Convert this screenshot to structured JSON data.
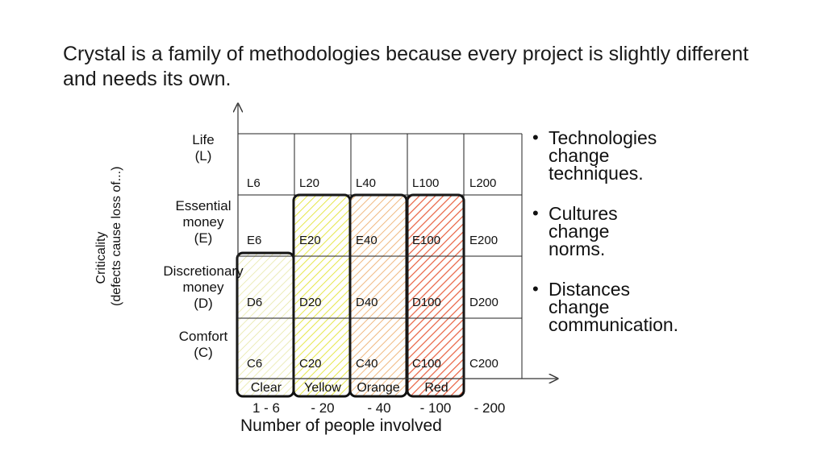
{
  "title": "Crystal is a family of methodologies because every project is slightly different and needs its own.",
  "y_axis_title": [
    "Criticality",
    "(defects cause loss of...)"
  ],
  "y_levels": [
    {
      "name": "Life",
      "code": "(L)"
    },
    {
      "name": "Essential money",
      "code": "(E)"
    },
    {
      "name": "Discretionary money",
      "code": "(D)"
    },
    {
      "name": "Comfort",
      "code": "(C)"
    }
  ],
  "cells": [
    [
      "L6",
      "L20",
      "L40",
      "L100",
      "L200"
    ],
    [
      "E6",
      "E20",
      "E40",
      "E100",
      "E200"
    ],
    [
      "D6",
      "D20",
      "D40",
      "D100",
      "D200"
    ],
    [
      "C6",
      "C20",
      "C40",
      "C100",
      "C200"
    ]
  ],
  "bands": [
    {
      "name": "Clear",
      "color": "#f2f2b0"
    },
    {
      "name": "Yellow",
      "color": "#f0f060"
    },
    {
      "name": "Orange",
      "color": "#f2b87a"
    },
    {
      "name": "Red",
      "color": "#e8573a"
    }
  ],
  "x_ticks": [
    "1 - 6",
    "- 20",
    "- 40",
    "- 100",
    "- 200"
  ],
  "x_axis_title": "Number of people involved",
  "bullets": [
    "Technologies change techniques.",
    "Cultures change norms.",
    "Distances change communication."
  ]
}
